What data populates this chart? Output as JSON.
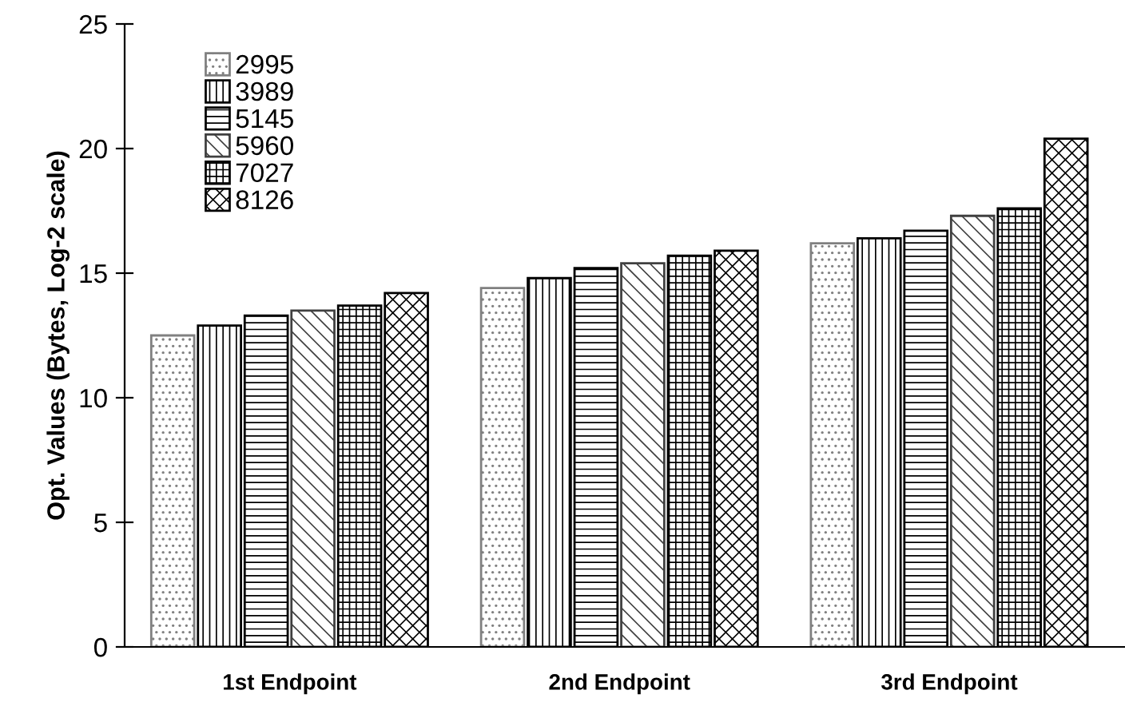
{
  "chart_data": {
    "type": "bar",
    "ylabel": "Opt. Values (Bytes, Log-2 scale)",
    "categories": [
      "1st Endpoint",
      "2nd Endpoint",
      "3rd Endpoint"
    ],
    "series": [
      {
        "name": "2995",
        "color": "#808080",
        "values": [
          12.5,
          14.4,
          16.2
        ]
      },
      {
        "name": "3989",
        "color": "#000000",
        "values": [
          12.9,
          14.8,
          16.4
        ]
      },
      {
        "name": "5145",
        "color": "#000000",
        "values": [
          13.3,
          15.2,
          16.7
        ]
      },
      {
        "name": "5960",
        "color": "#404040",
        "values": [
          13.5,
          15.4,
          17.3
        ]
      },
      {
        "name": "7027",
        "color": "#000000",
        "values": [
          13.7,
          15.7,
          17.6
        ]
      },
      {
        "name": "8126",
        "color": "#000000",
        "values": [
          14.2,
          15.9,
          20.4
        ]
      }
    ],
    "ylim": [
      0,
      25
    ],
    "yticks": [
      0,
      5,
      10,
      15,
      20,
      25
    ],
    "grid": false,
    "legend": "top left"
  }
}
